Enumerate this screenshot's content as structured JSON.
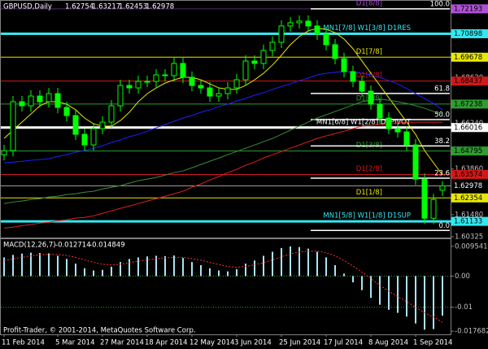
{
  "chart_data": {
    "type": "candlestick",
    "symbol": "GBPUSD,Daily",
    "footer": "Profit-Trader, © 2001-2014, MetaQuotes Software Corp.",
    "candle_color": "#00ff00",
    "categories": [
      "11 Feb 2014",
      null,
      null,
      null,
      null,
      null,
      "5 Mar 2014",
      null,
      null,
      null,
      null,
      "27 Mar 2014",
      null,
      null,
      null,
      null,
      "18 Apr 2014",
      null,
      null,
      null,
      null,
      "12 May 2014",
      null,
      null,
      null,
      null,
      "3 Jun 2014",
      null,
      null,
      null,
      null,
      "25 Jun 2014",
      null,
      null,
      null,
      null,
      "17 Jul 2014",
      null,
      null,
      null,
      null,
      "8 Aug 2014",
      null,
      null,
      null,
      null,
      "1 Sep 2014",
      null,
      null,
      null
    ],
    "open": [
      1.646,
      1.64815,
      1.67359,
      1.67147,
      1.67656,
      1.67359,
      1.67783,
      1.67062,
      1.66638,
      1.65663,
      1.65112,
      1.6596,
      1.66299,
      1.67147,
      1.68207,
      1.6808,
      1.68419,
      1.68419,
      1.68758,
      1.68716,
      1.69352,
      1.68631,
      1.68207,
      1.6808,
      1.67656,
      1.67783,
      1.6808,
      1.68504,
      1.69479,
      1.69352,
      1.7003,
      1.70454,
      1.71302,
      1.71472,
      1.71557,
      1.71302,
      1.70878,
      1.70327,
      1.69606,
      1.68928,
      1.68419,
      1.6791,
      1.67232,
      1.66511,
      1.6596,
      1.6579,
      1.65112,
      1.63331,
      1.61296,
      1.62754
    ],
    "high": [
      1.65115,
      1.67659,
      1.67659,
      1.67956,
      1.67956,
      1.68083,
      1.68083,
      1.67362,
      1.66938,
      1.65963,
      1.6626,
      1.66599,
      1.67447,
      1.68507,
      1.68507,
      1.68719,
      1.68719,
      1.69058,
      1.69058,
      1.69652,
      1.69652,
      1.68931,
      1.68507,
      1.6838,
      1.68083,
      1.6838,
      1.68804,
      1.69779,
      1.69779,
      1.7033,
      1.70754,
      1.71602,
      1.71772,
      1.71857,
      1.71857,
      1.71602,
      1.71178,
      1.70627,
      1.69906,
      1.69228,
      1.68719,
      1.6821,
      1.67532,
      1.66811,
      1.6626,
      1.6609,
      1.65412,
      1.63631,
      1.62571,
      1.63217
    ],
    "low": [
      1.643,
      1.64515,
      1.66847,
      1.66847,
      1.67059,
      1.67059,
      1.66762,
      1.66338,
      1.65363,
      1.64812,
      1.64812,
      1.6566,
      1.65999,
      1.66847,
      1.6778,
      1.6778,
      1.68119,
      1.68119,
      1.68416,
      1.68416,
      1.68331,
      1.67907,
      1.6778,
      1.67356,
      1.67356,
      1.67483,
      1.6778,
      1.68204,
      1.69052,
      1.69052,
      1.6973,
      1.70154,
      1.71002,
      1.71172,
      1.71002,
      1.70578,
      1.70027,
      1.69306,
      1.68628,
      1.68119,
      1.6761,
      1.66932,
      1.66211,
      1.6566,
      1.6549,
      1.64812,
      1.63031,
      1.60996,
      1.60996,
      1.62453
    ],
    "close": [
      1.64815,
      1.67359,
      1.67147,
      1.67656,
      1.67359,
      1.67783,
      1.67062,
      1.66638,
      1.65663,
      1.65112,
      1.6596,
      1.66299,
      1.67147,
      1.68207,
      1.6808,
      1.68419,
      1.68419,
      1.68758,
      1.68716,
      1.69352,
      1.68631,
      1.68207,
      1.6808,
      1.67656,
      1.67783,
      1.6808,
      1.68504,
      1.69479,
      1.69352,
      1.7003,
      1.70454,
      1.71302,
      1.71472,
      1.71557,
      1.71302,
      1.70878,
      1.70327,
      1.69606,
      1.68928,
      1.68419,
      1.6791,
      1.67232,
      1.66511,
      1.6596,
      1.6579,
      1.65112,
      1.63331,
      1.61296,
      1.62271,
      1.62978
    ],
    "ylim": [
      1.6029,
      1.7257
    ],
    "yticks": [
      1.60325,
      {
        "value": 1.6148,
        "label": "1.61480"
      },
      {
        "value": 1.6386,
        "label": "1.63860"
      },
      {
        "value": 1.6624,
        "label": "1.66240"
      },
      {
        "value": 1.6862,
        "label": "1.68620"
      }
    ],
    "moving_averages": [
      {
        "color": "#e8e800",
        "values": [
          1.6545,
          1.6588,
          1.663,
          1.6672,
          1.6715,
          1.6736,
          1.6736,
          1.6723,
          1.6694,
          1.6651,
          1.6621,
          1.6609,
          1.6609,
          1.6638,
          1.6681,
          1.6736,
          1.6778,
          1.6808,
          1.6833,
          1.685,
          1.6863,
          1.6863,
          1.685,
          1.6829,
          1.6808,
          1.68,
          1.68,
          1.6821,
          1.685,
          1.6884,
          1.6927,
          1.6978,
          1.7033,
          1.7075,
          1.7105,
          1.7118,
          1.7113,
          1.7096,
          1.7062,
          1.7012,
          1.6948,
          1.6884,
          1.6821,
          1.6757,
          1.6694,
          1.663,
          1.6566,
          1.6482,
          1.6418,
          1.6354
        ]
      },
      {
        "color": "#2020ff",
        "values": [
          1.6418,
          1.6422,
          1.6426,
          1.6431,
          1.6435,
          1.6439,
          1.6452,
          1.646,
          1.6473,
          1.6482,
          1.6494,
          1.6507,
          1.6524,
          1.6537,
          1.6554,
          1.6566,
          1.6583,
          1.66,
          1.6617,
          1.6634,
          1.6651,
          1.6664,
          1.6681,
          1.6694,
          1.6711,
          1.6723,
          1.674,
          1.6753,
          1.677,
          1.6783,
          1.68,
          1.6816,
          1.6829,
          1.6846,
          1.6859,
          1.6876,
          1.6884,
          1.6889,
          1.6893,
          1.6889,
          1.6884,
          1.6876,
          1.6863,
          1.6846,
          1.6829,
          1.6804,
          1.6778,
          1.6753,
          1.6727,
          1.6694
        ]
      },
      {
        "color": "#3c8c3c",
        "values": [
          1.6206,
          1.6214,
          1.6219,
          1.6227,
          1.6231,
          1.624,
          1.6244,
          1.6253,
          1.6257,
          1.6265,
          1.627,
          1.6282,
          1.6291,
          1.6299,
          1.6312,
          1.6325,
          1.6333,
          1.6342,
          1.6354,
          1.6367,
          1.6376,
          1.6392,
          1.6409,
          1.6426,
          1.6443,
          1.646,
          1.6477,
          1.6494,
          1.6511,
          1.6528,
          1.6545,
          1.6566,
          1.6588,
          1.6609,
          1.663,
          1.6651,
          1.6668,
          1.6685,
          1.6702,
          1.6719,
          1.6736,
          1.6744,
          1.6749,
          1.6744,
          1.6736,
          1.6727,
          1.6715,
          1.6702,
          1.6685,
          1.6672
        ]
      },
      {
        "color": "#e02020",
        "values": [
          1.6079,
          1.6083,
          1.6091,
          1.6096,
          1.6104,
          1.6108,
          1.6117,
          1.6121,
          1.613,
          1.6134,
          1.6142,
          1.6155,
          1.6168,
          1.6181,
          1.6193,
          1.6206,
          1.6219,
          1.6231,
          1.6244,
          1.6257,
          1.627,
          1.6291,
          1.6308,
          1.6329,
          1.6346,
          1.6367,
          1.6384,
          1.6405,
          1.6422,
          1.6443,
          1.646,
          1.6477,
          1.6494,
          1.6511,
          1.6528,
          1.6545,
          1.6558,
          1.657,
          1.6583,
          1.6596,
          1.6609,
          1.6613,
          1.6617,
          1.6621,
          1.6626,
          1.663,
          1.663,
          1.663,
          1.663,
          1.663
        ]
      }
    ],
    "levels": [
      {
        "label": "D1[8/8]",
        "value": 1.72193,
        "color": "#b050d8"
      },
      {
        "label": "MN1[7/8] W1[3/8] D1RES",
        "value": 1.70898,
        "color": "#30e8f0"
      },
      {
        "label": "D1[7/8]",
        "value": 1.69678,
        "color": "#e8e800"
      },
      {
        "label": "D1[6/8]",
        "value": 1.68437,
        "color": "#d01818"
      },
      {
        "label": "D1[5/8]",
        "value": 1.67238,
        "color": "#2e9c2e"
      },
      {
        "label": "MN1[6/8] W1[2/8] D1PIVOT",
        "value": 1.66016,
        "color": "#ffffff"
      },
      {
        "label": "D1[3/8]",
        "value": 1.64795,
        "color": "#2e9c2e"
      },
      {
        "label": "D1[2/8]",
        "value": 1.63574,
        "color": "#d01818"
      },
      {
        "label": "D1[1/8]",
        "value": 1.62354,
        "color": "#e8e800"
      },
      {
        "label": "MN1[5/8] W1[1/8] D1SUP",
        "value": 1.61133,
        "color": "#30e8f0"
      }
    ],
    "fibo": {
      "color": "#ffffff",
      "levels": [
        {
          "label": "100.0",
          "value": 1.72193
        },
        {
          "label": "61.8",
          "value": 1.6779
        },
        {
          "label": "50.0",
          "value": 1.6643
        },
        {
          "label": "38.2",
          "value": 1.6506
        },
        {
          "label": "23.6",
          "value": 1.6338
        },
        {
          "label": "0.0",
          "value": 1.6066
        }
      ]
    },
    "macd": {
      "title": "MACD(12,26,7)",
      "ylim": [
        -0.0187,
        0.0121
      ],
      "yticks": [
        0.009541,
        {
          "value": 0,
          "label": "0.00"
        },
        -0.01,
        -0.017682
      ],
      "histogram": {
        "color": "#a8e4f4",
        "values": [
          0.006,
          0.0068,
          0.0072,
          0.0075,
          0.0074,
          0.0073,
          0.0065,
          0.0055,
          0.004,
          0.0025,
          0.0018,
          0.002,
          0.003,
          0.0045,
          0.0055,
          0.006,
          0.0063,
          0.0065,
          0.0064,
          0.0066,
          0.0058,
          0.0045,
          0.0035,
          0.0025,
          0.0018,
          0.0015,
          0.0022,
          0.004,
          0.005,
          0.0065,
          0.0078,
          0.009,
          0.0095,
          0.0093,
          0.0088,
          0.0078,
          0.006,
          0.0035,
          0.0008,
          -0.002,
          -0.0045,
          -0.007,
          -0.0092,
          -0.0108,
          -0.0118,
          -0.013,
          -0.0152,
          -0.0172,
          -0.017,
          -0.012714
        ]
      },
      "signal": {
        "color": "#ff3030",
        "values": [
          0.005,
          0.0055,
          0.006,
          0.0065,
          0.0068,
          0.007,
          0.0069,
          0.0066,
          0.006,
          0.0052,
          0.0044,
          0.0038,
          0.0036,
          0.0038,
          0.0043,
          0.0048,
          0.0052,
          0.0056,
          0.0058,
          0.006,
          0.006,
          0.0056,
          0.0051,
          0.0044,
          0.0037,
          0.0031,
          0.0028,
          0.0031,
          0.0036,
          0.0043,
          0.0052,
          0.0062,
          0.0071,
          0.0077,
          0.008,
          0.008,
          0.0075,
          0.0065,
          0.005,
          0.0032,
          0.0013,
          -0.0008,
          -0.0029,
          -0.0049,
          -0.0066,
          -0.0082,
          -0.01,
          -0.0118,
          -0.0131,
          -0.014849
        ]
      }
    }
  }
}
